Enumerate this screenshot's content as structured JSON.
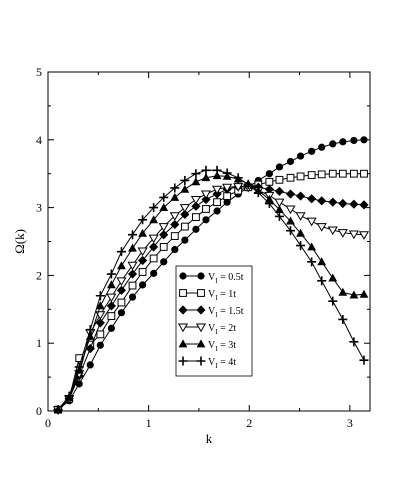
{
  "chart_data": {
    "type": "line",
    "title": "",
    "xlabel": "k",
    "ylabel": "Ω(k)",
    "xlim": [
      0,
      3.2
    ],
    "ylim": [
      0,
      5
    ],
    "xticks": [
      0,
      1,
      2,
      3
    ],
    "yticks": [
      0,
      1,
      2,
      3,
      4,
      5
    ],
    "grid": false,
    "legend_position": "inside-center-right",
    "series": [
      {
        "name": "V_I = 0.5t",
        "label_main": "V",
        "label_sub": "I",
        "label_rest": " = 0.5t",
        "marker": "circle-filled",
        "x": [
          0.1,
          0.21,
          0.31,
          0.42,
          0.52,
          0.63,
          0.73,
          0.84,
          0.94,
          1.05,
          1.15,
          1.26,
          1.36,
          1.47,
          1.57,
          1.68,
          1.78,
          1.89,
          1.99,
          2.09,
          2.2,
          2.3,
          2.41,
          2.51,
          2.62,
          2.72,
          2.83,
          2.93,
          3.04,
          3.14
        ],
        "y": [
          0.02,
          0.15,
          0.4,
          0.68,
          0.97,
          1.22,
          1.45,
          1.68,
          1.86,
          2.03,
          2.2,
          2.38,
          2.52,
          2.68,
          2.82,
          2.95,
          3.08,
          3.2,
          3.3,
          3.4,
          3.5,
          3.6,
          3.68,
          3.76,
          3.83,
          3.89,
          3.94,
          3.97,
          3.99,
          4.0
        ]
      },
      {
        "name": "V_I = 1t",
        "label_main": "V",
        "label_sub": "I",
        "label_rest": " = 1t",
        "marker": "square-open",
        "x": [
          0.1,
          0.21,
          0.31,
          0.42,
          0.52,
          0.63,
          0.73,
          0.84,
          0.94,
          1.05,
          1.15,
          1.26,
          1.36,
          1.47,
          1.57,
          1.68,
          1.78,
          1.89,
          1.99,
          2.09,
          2.2,
          2.3,
          2.41,
          2.51,
          2.62,
          2.72,
          2.83,
          2.93,
          3.04,
          3.14
        ],
        "y": [
          0.02,
          0.18,
          0.78,
          0.98,
          1.13,
          1.4,
          1.6,
          1.85,
          2.05,
          2.25,
          2.42,
          2.58,
          2.72,
          2.86,
          2.98,
          3.08,
          3.17,
          3.25,
          3.3,
          3.34,
          3.38,
          3.41,
          3.44,
          3.46,
          3.48,
          3.49,
          3.5,
          3.5,
          3.5,
          3.5
        ]
      },
      {
        "name": "V_I = 1.5t",
        "label_main": "V",
        "label_sub": "I",
        "label_rest": " = 1.5t",
        "marker": "diamond-filled",
        "x": [
          0.1,
          0.21,
          0.31,
          0.42,
          0.52,
          0.63,
          0.73,
          0.84,
          0.94,
          1.05,
          1.15,
          1.26,
          1.36,
          1.47,
          1.57,
          1.68,
          1.78,
          1.89,
          1.99,
          2.09,
          2.2,
          2.3,
          2.41,
          2.51,
          2.62,
          2.72,
          2.83,
          2.93,
          3.04,
          3.14
        ],
        "y": [
          0.02,
          0.18,
          0.52,
          0.92,
          1.3,
          1.55,
          1.78,
          2.02,
          2.22,
          2.42,
          2.6,
          2.75,
          2.9,
          3.02,
          3.12,
          3.2,
          3.27,
          3.31,
          3.32,
          3.3,
          3.27,
          3.24,
          3.2,
          3.17,
          3.13,
          3.1,
          3.08,
          3.06,
          3.05,
          3.04
        ]
      },
      {
        "name": "V_I = 2t",
        "label_main": "V",
        "label_sub": "I",
        "label_rest": " = 2t",
        "marker": "triangle-down-open",
        "x": [
          0.1,
          0.21,
          0.31,
          0.42,
          0.52,
          0.63,
          0.73,
          0.84,
          0.94,
          1.05,
          1.15,
          1.26,
          1.36,
          1.47,
          1.57,
          1.68,
          1.78,
          1.89,
          1.99,
          2.09,
          2.2,
          2.3,
          2.41,
          2.51,
          2.62,
          2.72,
          2.83,
          2.93,
          3.04,
          3.14
        ],
        "y": [
          0.02,
          0.18,
          0.55,
          1.15,
          1.42,
          1.68,
          1.92,
          2.15,
          2.36,
          2.55,
          2.72,
          2.88,
          3.0,
          3.12,
          3.2,
          3.27,
          3.3,
          3.31,
          3.3,
          3.25,
          3.18,
          3.08,
          2.98,
          2.88,
          2.8,
          2.72,
          2.67,
          2.63,
          2.61,
          2.6
        ]
      },
      {
        "name": "V_I = 3t",
        "label_main": "V",
        "label_sub": "I",
        "label_rest": " = 3t",
        "marker": "triangle-up-filled",
        "x": [
          0.1,
          0.21,
          0.31,
          0.42,
          0.52,
          0.63,
          0.73,
          0.84,
          0.94,
          1.05,
          1.15,
          1.26,
          1.36,
          1.47,
          1.57,
          1.68,
          1.78,
          1.89,
          1.99,
          2.09,
          2.2,
          2.3,
          2.41,
          2.51,
          2.62,
          2.72,
          2.83,
          2.93,
          3.04,
          3.14
        ],
        "y": [
          0.02,
          0.2,
          0.6,
          1.1,
          1.55,
          1.86,
          2.14,
          2.4,
          2.62,
          2.82,
          3.0,
          3.15,
          3.27,
          3.38,
          3.44,
          3.47,
          3.46,
          3.42,
          3.35,
          3.25,
          3.12,
          2.97,
          2.8,
          2.62,
          2.42,
          2.2,
          1.96,
          1.75,
          1.71,
          1.72
        ]
      },
      {
        "name": "V_I = 4t",
        "label_main": "V",
        "label_sub": "I",
        "label_rest": " = 4t",
        "marker": "plus",
        "x": [
          0.1,
          0.21,
          0.31,
          0.42,
          0.52,
          0.63,
          0.73,
          0.84,
          0.94,
          1.05,
          1.15,
          1.26,
          1.36,
          1.47,
          1.57,
          1.68,
          1.78,
          1.89,
          1.99,
          2.09,
          2.2,
          2.3,
          2.41,
          2.51,
          2.62,
          2.72,
          2.83,
          2.93,
          3.04,
          3.14
        ],
        "y": [
          0.02,
          0.22,
          0.65,
          1.2,
          1.7,
          2.02,
          2.35,
          2.6,
          2.82,
          3.0,
          3.15,
          3.29,
          3.4,
          3.5,
          3.55,
          3.55,
          3.51,
          3.44,
          3.34,
          3.22,
          3.06,
          2.87,
          2.66,
          2.44,
          2.2,
          1.92,
          1.62,
          1.35,
          1.02,
          0.75
        ]
      }
    ]
  }
}
